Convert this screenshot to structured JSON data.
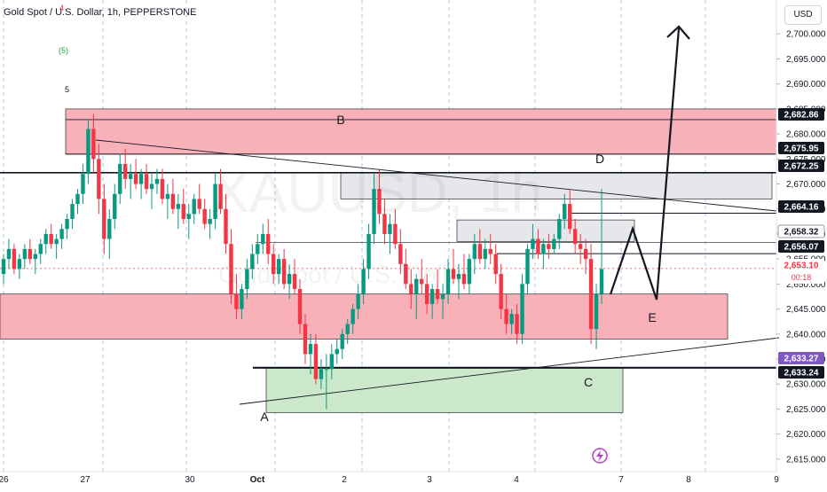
{
  "header": {
    "title": "Gold Spot / U.S. Dollar, 1h, PEPPERSTONE",
    "currency": "USD"
  },
  "watermark": {
    "symbol": "XAUUSD",
    "interval": "1h",
    "description": "Gold Spot / U.S. Dollar"
  },
  "waves": {
    "red": "4",
    "green": "(5)",
    "top": "5"
  },
  "colors": {
    "up": "#089981",
    "down": "#f23645",
    "zone_red": "#f7a9b0",
    "zone_green": "#c6e5c4",
    "zone_gray": "#e3e4e8",
    "current_badge": "#f23645",
    "purple_badge": "#7e57c2"
  },
  "chart_data": {
    "type": "candlestick",
    "symbol": "XAUUSD",
    "interval": "1h",
    "ylim": [
      2612.5,
      2705
    ],
    "y_ticks": [
      2615,
      2620,
      2625,
      2630,
      2635,
      2640,
      2645,
      2650,
      2655,
      2660,
      2665,
      2670,
      2675,
      2680,
      2685,
      2690,
      2695,
      2700
    ],
    "x_ticks": [
      "26",
      "27",
      "30",
      "Oct",
      "2",
      "3",
      "4",
      "7",
      "8",
      "9"
    ],
    "price_labels": [
      {
        "value": "2,682.86",
        "style": "black"
      },
      {
        "value": "2,675.95",
        "style": "black"
      },
      {
        "value": "2,672.25",
        "style": "black"
      },
      {
        "value": "2,664.16",
        "style": "black"
      },
      {
        "value": "2,658.32",
        "style": "gray"
      },
      {
        "value": "2,656.07",
        "style": "black"
      },
      {
        "value": "2,653.10",
        "sub": "00:18",
        "style": "current"
      },
      {
        "value": "2,633.27",
        "style": "purple"
      },
      {
        "value": "2,633.24",
        "style": "black"
      }
    ],
    "annotations": [
      "A",
      "B",
      "C",
      "D",
      "E"
    ],
    "zones": [
      {
        "color": "red",
        "y1": 2676,
        "y2": 2685
      },
      {
        "color": "red",
        "y1": 2639,
        "y2": 2648
      },
      {
        "color": "gray",
        "y1": 2667,
        "y2": 2672.3
      },
      {
        "color": "gray",
        "y1": 2658.5,
        "y2": 2662.8
      },
      {
        "color": "green",
        "y1": 2624.3,
        "y2": 2633.2
      }
    ],
    "levels": [
      2682.86,
      2675.95,
      2672.25,
      2664.16,
      2658.32,
      2656.07,
      2633.27
    ],
    "candles": [
      [
        2652,
        2656,
        2650,
        2655
      ],
      [
        2655,
        2659,
        2653,
        2657
      ],
      [
        2657,
        2658,
        2652,
        2653
      ],
      [
        2653,
        2656,
        2651,
        2655
      ],
      [
        2655,
        2658,
        2653,
        2657
      ],
      [
        2657,
        2659,
        2654,
        2655
      ],
      [
        2655,
        2657,
        2652,
        2656
      ],
      [
        2656,
        2659,
        2654,
        2658
      ],
      [
        2658,
        2661,
        2656,
        2660
      ],
      [
        2660,
        2662,
        2657,
        2658
      ],
      [
        2658,
        2660,
        2655,
        2659
      ],
      [
        2659,
        2662,
        2657,
        2661
      ],
      [
        2661,
        2664,
        2659,
        2663
      ],
      [
        2663,
        2667,
        2661,
        2666
      ],
      [
        2666,
        2669,
        2664,
        2668
      ],
      [
        2668,
        2674,
        2666,
        2672
      ],
      [
        2672,
        2683,
        2670,
        2681
      ],
      [
        2681,
        2684,
        2672,
        2675
      ],
      [
        2675,
        2678,
        2664,
        2667
      ],
      [
        2667,
        2670,
        2656,
        2659
      ],
      [
        2659,
        2665,
        2655,
        2663
      ],
      [
        2663,
        2670,
        2661,
        2668
      ],
      [
        2668,
        2676,
        2666,
        2674
      ],
      [
        2674,
        2677,
        2669,
        2671
      ],
      [
        2671,
        2674,
        2667,
        2672
      ],
      [
        2672,
        2675,
        2669,
        2670
      ],
      [
        2670,
        2673,
        2667,
        2672
      ],
      [
        2672,
        2674,
        2668,
        2669
      ],
      [
        2669,
        2672,
        2665,
        2670
      ],
      [
        2670,
        2673,
        2668,
        2671
      ],
      [
        2671,
        2673,
        2666,
        2667
      ],
      [
        2667,
        2670,
        2663,
        2668
      ],
      [
        2668,
        2671,
        2664,
        2665
      ],
      [
        2665,
        2668,
        2661,
        2666
      ],
      [
        2666,
        2669,
        2662,
        2663
      ],
      [
        2663,
        2666,
        2659,
        2664
      ],
      [
        2664,
        2668,
        2662,
        2667
      ],
      [
        2667,
        2670,
        2664,
        2665
      ],
      [
        2665,
        2667,
        2661,
        2662
      ],
      [
        2662,
        2665,
        2659,
        2663
      ],
      [
        2663,
        2672,
        2661,
        2670
      ],
      [
        2670,
        2673,
        2664,
        2665
      ],
      [
        2665,
        2668,
        2656,
        2658
      ],
      [
        2658,
        2661,
        2646,
        2648
      ],
      [
        2648,
        2652,
        2643,
        2645
      ],
      [
        2645,
        2650,
        2643,
        2649
      ],
      [
        2649,
        2655,
        2647,
        2653
      ],
      [
        2653,
        2658,
        2651,
        2656
      ],
      [
        2656,
        2660,
        2654,
        2658
      ],
      [
        2658,
        2662,
        2656,
        2660
      ],
      [
        2660,
        2663,
        2654,
        2656
      ],
      [
        2656,
        2658,
        2650,
        2652
      ],
      [
        2652,
        2656,
        2650,
        2655
      ],
      [
        2655,
        2657,
        2649,
        2650
      ],
      [
        2650,
        2654,
        2647,
        2652
      ],
      [
        2652,
        2655,
        2648,
        2649
      ],
      [
        2649,
        2651,
        2640,
        2642
      ],
      [
        2642,
        2644,
        2634,
        2636
      ],
      [
        2636,
        2640,
        2632,
        2638
      ],
      [
        2638,
        2640,
        2630,
        2631
      ],
      [
        2631,
        2635,
        2629,
        2633
      ],
      [
        2633,
        2636,
        2625,
        2633
      ],
      [
        2633,
        2638,
        2631,
        2636
      ],
      [
        2636,
        2639,
        2634,
        2637
      ],
      [
        2637,
        2641,
        2635,
        2640
      ],
      [
        2640,
        2643,
        2638,
        2642
      ],
      [
        2642,
        2646,
        2640,
        2645
      ],
      [
        2645,
        2650,
        2643,
        2648
      ],
      [
        2648,
        2655,
        2646,
        2653
      ],
      [
        2653,
        2662,
        2651,
        2660
      ],
      [
        2660,
        2672,
        2658,
        2669
      ],
      [
        2669,
        2673,
        2662,
        2664
      ],
      [
        2664,
        2667,
        2658,
        2660
      ],
      [
        2660,
        2664,
        2656,
        2662
      ],
      [
        2662,
        2665,
        2657,
        2658
      ],
      [
        2658,
        2661,
        2652,
        2654
      ],
      [
        2654,
        2657,
        2649,
        2650
      ],
      [
        2650,
        2653,
        2645,
        2648
      ],
      [
        2648,
        2652,
        2643,
        2651
      ],
      [
        2651,
        2655,
        2648,
        2650
      ],
      [
        2650,
        2652,
        2644,
        2646
      ],
      [
        2646,
        2650,
        2643,
        2649
      ],
      [
        2649,
        2653,
        2646,
        2647
      ],
      [
        2647,
        2650,
        2643,
        2648
      ],
      [
        2648,
        2655,
        2646,
        2653
      ],
      [
        2653,
        2657,
        2650,
        2651
      ],
      [
        2651,
        2654,
        2647,
        2652
      ],
      [
        2652,
        2656,
        2649,
        2650
      ],
      [
        2650,
        2656,
        2648,
        2655
      ],
      [
        2655,
        2660,
        2652,
        2658
      ],
      [
        2658,
        2661,
        2654,
        2655
      ],
      [
        2655,
        2659,
        2653,
        2657
      ],
      [
        2657,
        2660,
        2654,
        2656
      ],
      [
        2656,
        2658,
        2650,
        2652
      ],
      [
        2652,
        2654,
        2643,
        2645
      ],
      [
        2645,
        2648,
        2640,
        2642
      ],
      [
        2642,
        2645,
        2640,
        2644
      ],
      [
        2644,
        2646,
        2638,
        2640
      ],
      [
        2640,
        2652,
        2638,
        2650
      ],
      [
        2650,
        2658,
        2648,
        2657
      ],
      [
        2657,
        2662,
        2655,
        2659
      ],
      [
        2659,
        2661,
        2655,
        2656
      ],
      [
        2656,
        2659,
        2653,
        2658
      ],
      [
        2658,
        2660,
        2655,
        2657
      ],
      [
        2657,
        2660,
        2656,
        2659
      ],
      [
        2659,
        2664,
        2657,
        2663
      ],
      [
        2663,
        2668,
        2661,
        2666
      ],
      [
        2666,
        2669,
        2660,
        2661
      ],
      [
        2661,
        2663,
        2656,
        2658
      ],
      [
        2658,
        2660,
        2654,
        2657
      ],
      [
        2657,
        2659,
        2652,
        2655
      ],
      [
        2655,
        2658,
        2638,
        2641
      ],
      [
        2641,
        2650,
        2637,
        2648
      ],
      [
        2648,
        2669,
        2646,
        2653
      ]
    ]
  }
}
